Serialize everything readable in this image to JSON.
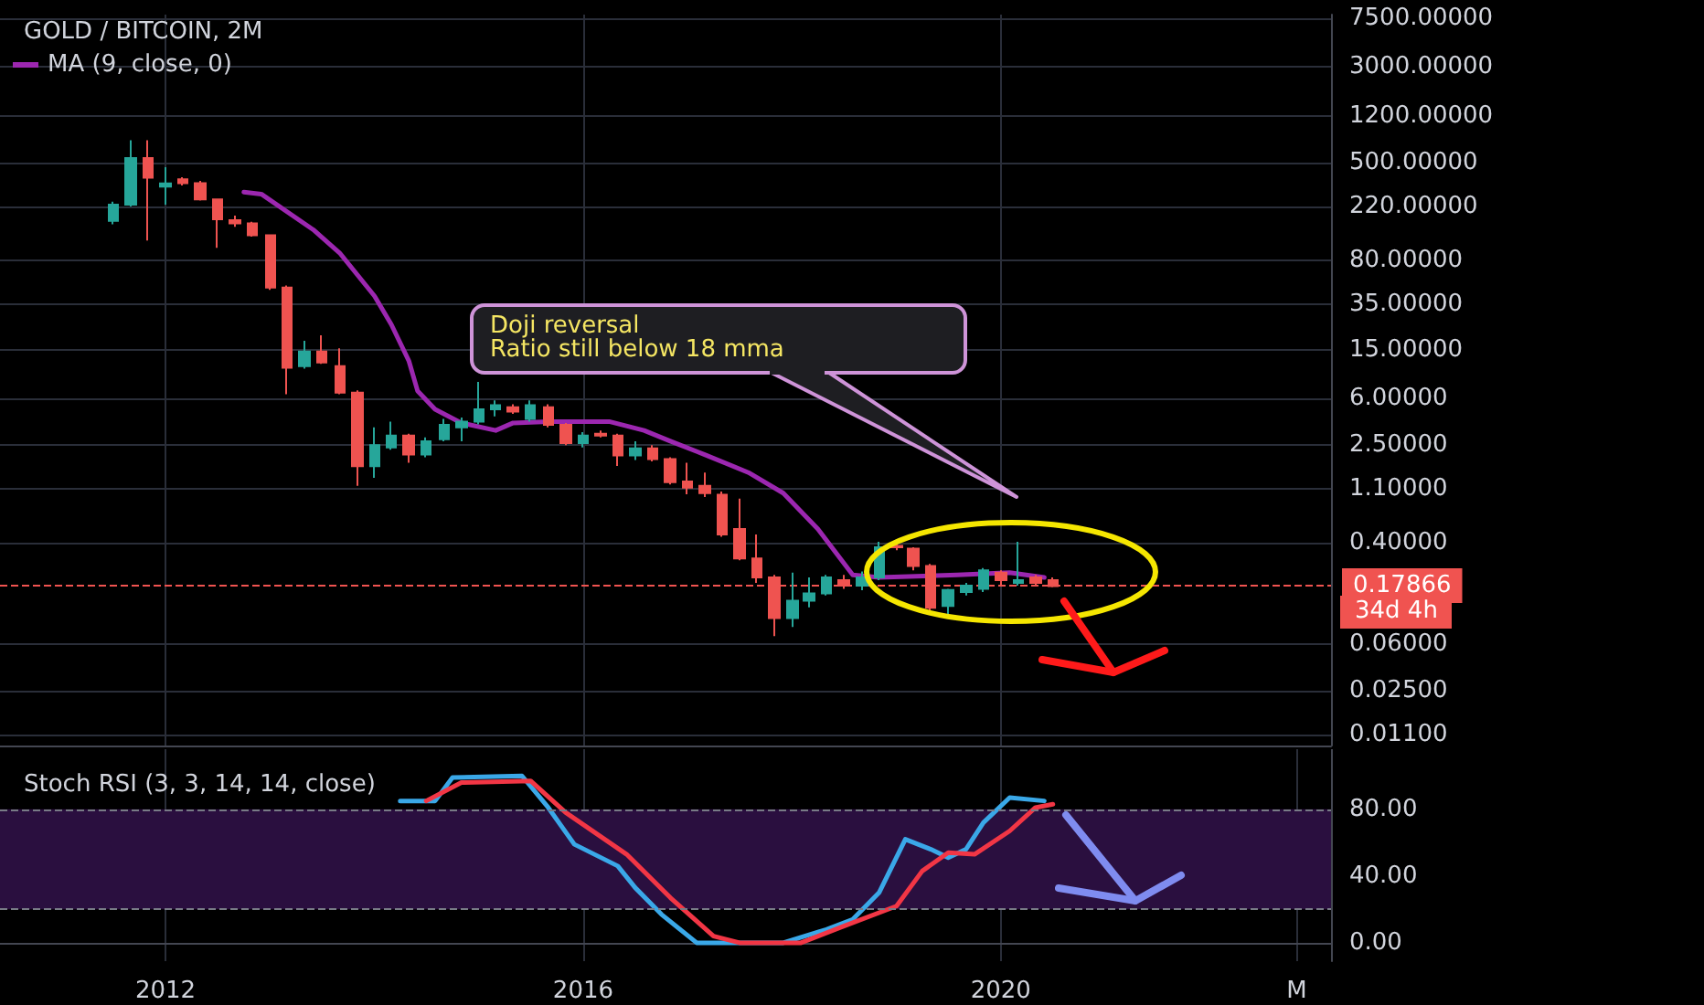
{
  "chart_data": [
    {
      "type": "candlestick",
      "title": "GOLD / BITCOIN, 2M",
      "x": [
        "2011-07",
        "2011-09",
        "2011-11",
        "2012-01",
        "2012-03",
        "2012-05",
        "2012-07",
        "2012-09",
        "2012-11",
        "2013-01",
        "2013-03",
        "2013-05",
        "2013-07",
        "2013-09",
        "2013-11",
        "2014-01",
        "2014-03",
        "2014-05",
        "2014-07",
        "2014-09",
        "2014-11",
        "2015-01",
        "2015-03",
        "2015-05",
        "2015-07",
        "2015-09",
        "2015-11",
        "2016-01",
        "2016-03",
        "2016-05",
        "2016-07",
        "2016-09",
        "2016-11",
        "2017-01",
        "2017-03",
        "2017-05",
        "2017-07",
        "2017-09",
        "2017-11",
        "2018-01",
        "2018-03",
        "2018-05",
        "2018-07",
        "2018-09",
        "2018-11",
        "2019-01",
        "2019-03",
        "2019-05",
        "2019-07",
        "2019-09",
        "2019-11",
        "2020-01",
        "2020-03",
        "2020-05",
        "2020-07"
      ],
      "ohlc": [
        [
          168,
          240,
          157,
          227
        ],
        [
          227,
          760,
          220,
          543
        ],
        [
          543,
          760,
          116,
          376
        ],
        [
          318,
          459,
          227,
          338
        ],
        [
          365,
          380,
          325,
          340
        ],
        [
          340,
          355,
          245,
          251
        ],
        [
          251,
          255,
          101,
          173
        ],
        [
          170,
          185,
          150,
          160
        ],
        [
          160,
          165,
          125,
          128
        ],
        [
          128,
          130,
          46,
          48
        ],
        [
          48,
          50,
          6.5,
          10.7
        ],
        [
          11,
          17.7,
          10.5,
          14.5
        ],
        [
          14.5,
          19.6,
          11.5,
          11.8
        ],
        [
          11,
          15.4,
          6.5,
          6.7
        ],
        [
          6.7,
          7,
          1.17,
          1.69
        ],
        [
          1.69,
          3.5,
          1.36,
          2.5
        ],
        [
          2.4,
          3.9,
          2.3,
          3.0
        ],
        [
          3.0,
          3.1,
          1.8,
          2.1
        ],
        [
          2.1,
          2.9,
          2.0,
          2.7
        ],
        [
          2.8,
          4.1,
          2.7,
          3.66
        ],
        [
          3.5,
          4.2,
          2.7,
          3.9
        ],
        [
          3.9,
          8.2,
          3.7,
          4.9
        ],
        [
          4.9,
          5.8,
          4.3,
          5.3
        ],
        [
          5.1,
          5.4,
          4.5,
          4.7
        ],
        [
          4.1,
          5.8,
          3.9,
          5.3
        ],
        [
          5.1,
          5.4,
          3.5,
          3.66
        ],
        [
          3.66,
          3.8,
          2.5,
          2.6
        ],
        [
          2.6,
          3.2,
          2.4,
          3.0
        ],
        [
          3.1,
          3.3,
          2.9,
          3.0
        ],
        [
          3.0,
          3.1,
          1.7,
          2.07
        ],
        [
          2.07,
          2.7,
          1.9,
          2.36
        ],
        [
          2.36,
          2.5,
          1.85,
          1.93
        ],
        [
          1.93,
          2.0,
          1.2,
          1.25
        ],
        [
          1.27,
          1.8,
          1.0,
          1.13
        ],
        [
          1.17,
          1.5,
          0.95,
          1.02
        ],
        [
          0.99,
          1.05,
          0.45,
          0.47
        ],
        [
          0.52,
          0.92,
          0.29,
          0.3
        ],
        [
          0.3,
          0.47,
          0.19,
          0.21
        ],
        [
          0.21,
          0.22,
          0.07,
          0.098
        ],
        [
          0.098,
          0.23,
          0.083,
          0.136
        ],
        [
          0.136,
          0.21,
          0.12,
          0.156
        ],
        [
          0.156,
          0.22,
          0.15,
          0.21
        ],
        [
          0.2,
          0.22,
          0.17,
          0.18
        ],
        [
          0.18,
          0.235,
          0.165,
          0.21
        ],
        [
          0.21,
          0.41,
          0.2,
          0.37
        ],
        [
          0.38,
          0.4,
          0.35,
          0.37
        ],
        [
          0.36,
          0.37,
          0.24,
          0.26
        ],
        [
          0.26,
          0.27,
          0.104,
          0.119
        ],
        [
          0.123,
          0.17,
          0.104,
          0.166
        ],
        [
          0.16,
          0.19,
          0.15,
          0.18
        ],
        [
          0.17,
          0.25,
          0.16,
          0.24
        ],
        [
          0.23,
          0.24,
          0.18,
          0.2
        ],
        [
          0.19,
          0.41,
          0.18,
          0.2
        ],
        [
          0.21,
          0.22,
          0.18,
          0.19
        ],
        [
          0.2,
          0.21,
          0.175,
          0.17866
        ]
      ],
      "series": [
        {
          "type": "line",
          "name": "MA (9, close, 0)",
          "color": "#9c27b0",
          "x": [
            "2012-10",
            "2012-12",
            "2013-06",
            "2013-09",
            "2014-01",
            "2014-03",
            "2014-05",
            "2014-06",
            "2014-08",
            "2014-11",
            "2015-03",
            "2015-05",
            "2015-09",
            "2016-01",
            "2016-04",
            "2016-08",
            "2016-11",
            "2017-03",
            "2017-08",
            "2017-12",
            "2018-04",
            "2018-08",
            "2018-11",
            "2019-08",
            "2020-02",
            "2020-06"
          ],
          "values": [
            287,
            277,
            142,
            92,
            41,
            24,
            12.2,
            6.9,
            4.9,
            3.8,
            3.3,
            3.8,
            3.9,
            3.9,
            3.9,
            3.3,
            2.7,
            2.1,
            1.5,
            1.02,
            0.52,
            0.22,
            0.21,
            0.22,
            0.23,
            0.21
          ]
        }
      ],
      "xlim": [
        "2010-06",
        "2023-03"
      ],
      "xticks": [
        {
          "value": "2012",
          "label": null
        },
        {
          "value": "2016",
          "label": null
        },
        {
          "value": "2020",
          "label": null
        }
      ],
      "ylim": [
        0.009,
        8000
      ],
      "yticks": [
        {
          "value": 7500,
          "label": "7500.00000"
        },
        {
          "value": 3000,
          "label": "3000.00000"
        },
        {
          "value": 1200,
          "label": "1200.00000"
        },
        {
          "value": 500,
          "label": "500.00000"
        },
        {
          "value": 220,
          "label": "220.00000"
        },
        {
          "value": 80,
          "label": "80.00000"
        },
        {
          "value": 35,
          "label": "35.00000"
        },
        {
          "value": 15,
          "label": "15.00000"
        },
        {
          "value": 6,
          "label": "6.00000"
        },
        {
          "value": 2.5,
          "label": "2.50000"
        },
        {
          "value": 1.1,
          "label": "1.10000"
        },
        {
          "value": 0.4,
          "label": "0.40000"
        },
        {
          "value": 0.06,
          "label": "0.06000"
        },
        {
          "value": 0.025,
          "label": "0.02500"
        },
        {
          "value": 0.011,
          "label": "0.01100"
        }
      ],
      "log": true,
      "grid": true,
      "tick_labels": "y",
      "legend": "top left",
      "ref_lines": [
        {
          "axis": "y",
          "value": 0.17866,
          "label": "0.17866",
          "color": "#f05350",
          "line_style": "dashed"
        }
      ],
      "annotations": [
        "Doji reversal\nRatio still below 18 mma",
        "34d 4h"
      ]
    },
    {
      "type": "line",
      "title": "Stoch RSI (3, 3, 14, 14, close)",
      "series": [
        {
          "color": "#3aa8e8",
          "x": [
            "2014-04",
            "2014-08",
            "2014-10",
            "2015-06",
            "2015-09",
            "2015-12",
            "2016-05",
            "2016-07",
            "2016-10",
            "2017-02",
            "2017-12",
            "2018-05",
            "2018-08",
            "2018-11",
            "2019-02",
            "2019-05",
            "2019-07",
            "2019-09",
            "2019-11",
            "2020-02",
            "2020-06"
          ],
          "values": [
            85,
            85,
            99,
            100,
            81,
            59,
            46,
            33,
            17,
            0,
            0,
            8,
            14,
            30,
            62,
            56,
            51,
            56,
            72,
            87,
            85
          ]
        },
        {
          "color": "#f23645",
          "x": [
            "2014-07",
            "2014-11",
            "2015-07",
            "2015-11",
            "2016-06",
            "2016-11",
            "2017-04",
            "2017-07",
            "2018-02",
            "2018-07",
            "2019-01",
            "2019-04",
            "2019-07",
            "2019-10",
            "2020-02",
            "2020-05",
            "2020-07"
          ],
          "values": [
            85,
            96,
            97,
            78,
            53,
            27,
            4,
            0,
            0,
            10,
            22,
            43,
            54,
            53,
            67,
            81,
            83
          ]
        }
      ],
      "xlim": [
        "2010-06",
        "2023-03"
      ],
      "xticks": [
        "2012",
        "2016",
        "2020",
        {
          "value": "2022-11",
          "label": "M"
        }
      ],
      "ylim": [
        -11,
        116
      ],
      "yticks": [
        {
          "value": 0,
          "label": "0.00"
        },
        {
          "value": 40,
          "label": "40.00"
        },
        {
          "value": 80,
          "label": "80.00"
        }
      ],
      "grid": true,
      "bands": [
        {
          "axis": "y",
          "from": 20,
          "to": 80,
          "color": "#2a0f3f"
        }
      ],
      "ref_lines": [
        {
          "axis": "y",
          "value": 20,
          "color": "#787b86",
          "line_style": "dashed"
        },
        {
          "axis": "y",
          "value": 80,
          "color": "#787b86",
          "line_style": "dashed"
        }
      ]
    }
  ]
}
